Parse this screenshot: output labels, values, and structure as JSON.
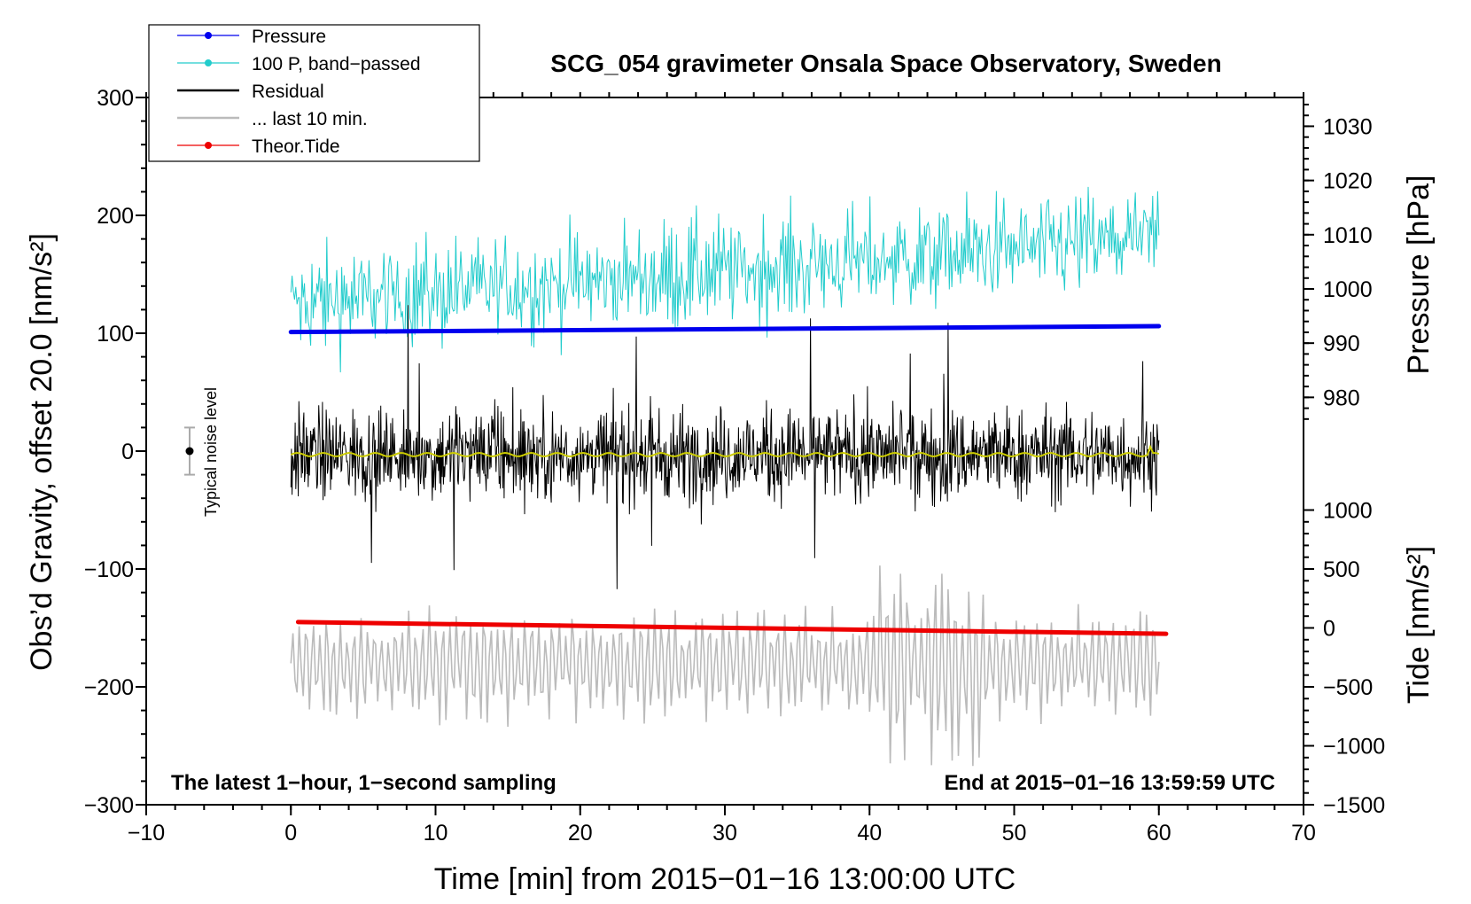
{
  "chart_data": {
    "type": "line",
    "title": "SCG_054 gravimeter Onsala Space Observatory, Sweden",
    "xlabel": "Time [min] from 2015−01−16 13:00:00 UTC",
    "ylabel_left": "Obs’d Gravity, offset 20.0 [nm/s²]",
    "ylabel_right_top": "Pressure [hPa]",
    "ylabel_right_bottom": "Tide [nm/s²]",
    "xlim": [
      -10,
      70
    ],
    "ylim": [
      -300,
      300
    ],
    "x_ticks": [
      -10,
      0,
      10,
      20,
      30,
      40,
      50,
      60,
      70
    ],
    "x_tick_labels": [
      "−10",
      "0",
      "10",
      "20",
      "30",
      "40",
      "50",
      "60",
      "70"
    ],
    "y_ticks": [
      -300,
      -200,
      -100,
      0,
      100,
      200,
      300
    ],
    "y_tick_labels": [
      "−300",
      "−200",
      "−100",
      "0",
      "100",
      "200",
      "300"
    ],
    "pressure_axis": {
      "ticks": [
        980,
        990,
        1000,
        1010,
        1020,
        1030
      ],
      "tick_labels": [
        "980",
        "990",
        "1000",
        "1010",
        "1020",
        "1030"
      ],
      "gravity_at_980": 45.6,
      "gravity_per_hpa": 4.6
    },
    "tide_axis": {
      "ticks": [
        -1500,
        -1000,
        -500,
        0,
        500,
        1000
      ],
      "tick_labels": [
        "−1500",
        "−1000",
        "−500",
        "0",
        "500",
        "1000"
      ],
      "gravity_at_0": -150,
      "gravity_per_unit": 0.1
    },
    "legend": [
      {
        "label": "Pressure",
        "color": "#0000ee",
        "marker": true
      },
      {
        "label": "100 P, band−passed",
        "color": "#22cccc",
        "marker": true
      },
      {
        "label": "Residual",
        "color": "#000000",
        "marker": false
      },
      {
        "label": "... last 10 min.",
        "color": "#bbbbbb",
        "marker": false
      },
      {
        "label": "Theor.Tide",
        "color": "#ee0000",
        "marker": true
      }
    ],
    "series": [
      {
        "name": "Pressure",
        "color": "#0000ee",
        "x_range": [
          0,
          60
        ],
        "y_start": 101,
        "y_end": 106
      },
      {
        "name": "100 P, band−passed",
        "color": "#22cccc",
        "x_range": [
          0,
          60
        ],
        "center_start": 125,
        "center_end": 180,
        "amplitude": 35
      },
      {
        "name": "Residual",
        "color": "#000000",
        "x_range": [
          0,
          60
        ],
        "center": -3,
        "amplitude": 40
      },
      {
        "name": "Residual smoothed",
        "color": "#cccc00",
        "x_range": [
          0,
          60
        ],
        "y": -3
      },
      {
        "name": "... last 10 min.",
        "color": "#bbbbbb",
        "x_range": [
          0,
          60
        ],
        "center": -180,
        "amplitude": 45
      },
      {
        "name": "Theor.Tide",
        "color": "#ee0000",
        "x_range": [
          0.5,
          60.5
        ],
        "y_start": -145,
        "y_end": -155
      }
    ],
    "noise_level": {
      "label": "Typical noise level",
      "x": -7,
      "center": 0,
      "low": -20,
      "high": 20
    },
    "annotations": {
      "left": "The latest 1−hour, 1−second sampling",
      "right": "End at 2015−01−16 13:59:59 UTC"
    }
  }
}
